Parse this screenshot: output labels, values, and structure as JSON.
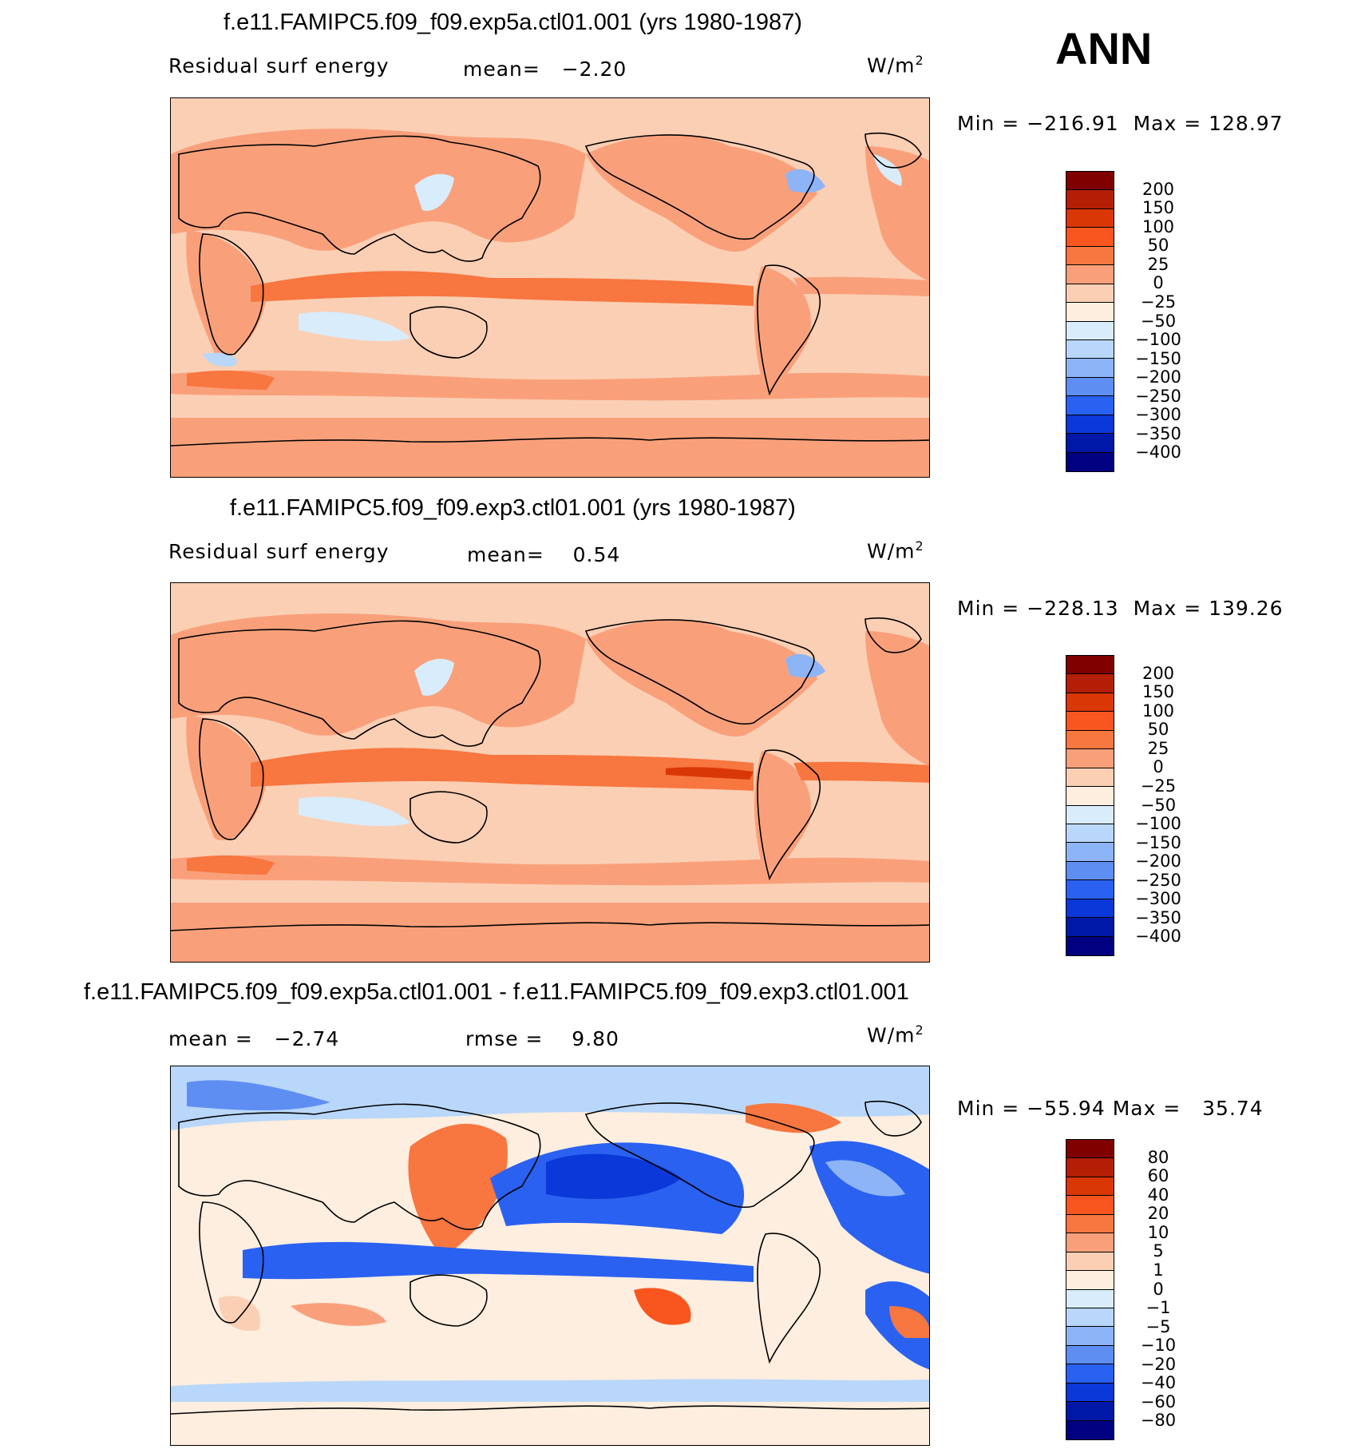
{
  "header": {
    "season": "ANN"
  },
  "panels": [
    {
      "title": "f.e11.FAMIPC5.f09_f09.exp5a.ctl01.001 (yrs 1980-1987)",
      "left_label": "Residual  surf  energy",
      "mean_label": "mean=",
      "mean_value": "−2.20",
      "units_base": "W/m",
      "units_exp": "2",
      "min_label": "Min  =",
      "min_value": "−216.91",
      "max_label": "Max  =",
      "max_value": "128.97",
      "colorbar_labels": [
        "200",
        "150",
        "100",
        "50",
        "25",
        "0",
        "−25",
        "−50",
        "−100",
        "−150",
        "−200",
        "−250",
        "−300",
        "−350",
        "−400"
      ],
      "colorbar_colors": [
        "#800000",
        "#b31e04",
        "#da3706",
        "#f9561f",
        "#f8763f",
        "#f9a07b",
        "#fbcfb4",
        "#fdeedf",
        "#d8ecfb",
        "#b9d7fa",
        "#8db4f6",
        "#5f8ef3",
        "#2a61f1",
        "#0b38d8",
        "#0018a8",
        "#000080"
      ]
    },
    {
      "title": "f.e11.FAMIPC5.f09_f09.exp3.ctl01.001 (yrs 1980-1987)",
      "left_label": "Residual  surf  energy",
      "mean_label": "mean=",
      "mean_value": "0.54",
      "units_base": "W/m",
      "units_exp": "2",
      "min_label": "Min  =",
      "min_value": "−228.13",
      "max_label": "Max  =",
      "max_value": "139.26",
      "colorbar_labels": [
        "200",
        "150",
        "100",
        "50",
        "25",
        "0",
        "−25",
        "−50",
        "−100",
        "−150",
        "−200",
        "−250",
        "−300",
        "−350",
        "−400"
      ],
      "colorbar_colors": [
        "#800000",
        "#b31e04",
        "#da3706",
        "#f9561f",
        "#f8763f",
        "#f9a07b",
        "#fbcfb4",
        "#fdeedf",
        "#d8ecfb",
        "#b9d7fa",
        "#8db4f6",
        "#5f8ef3",
        "#2a61f1",
        "#0b38d8",
        "#0018a8",
        "#000080"
      ]
    },
    {
      "title": "f.e11.FAMIPC5.f09_f09.exp5a.ctl01.001 - f.e11.FAMIPC5.f09_f09.exp3.ctl01.001",
      "mean_label": "mean  =",
      "mean_value": "−2.74",
      "rmse_label": "rmse  =",
      "rmse_value": "9.80",
      "units_base": "W/m",
      "units_exp": "2",
      "min_label": "Min  =",
      "min_value": "−55.94",
      "max_label": "Max  =",
      "max_value": "35.74",
      "colorbar_labels": [
        "80",
        "60",
        "40",
        "20",
        "10",
        "5",
        "1",
        "0",
        "−1",
        "−5",
        "−10",
        "−20",
        "−40",
        "−60",
        "−80"
      ],
      "colorbar_colors": [
        "#800000",
        "#b31e04",
        "#da3706",
        "#f9561f",
        "#f8763f",
        "#f9a07b",
        "#fbcfb4",
        "#fdeedf",
        "#d8ecfb",
        "#b9d7fa",
        "#8db4f6",
        "#5f8ef3",
        "#2a61f1",
        "#0b38d8",
        "#0018a8",
        "#000080"
      ]
    }
  ]
}
